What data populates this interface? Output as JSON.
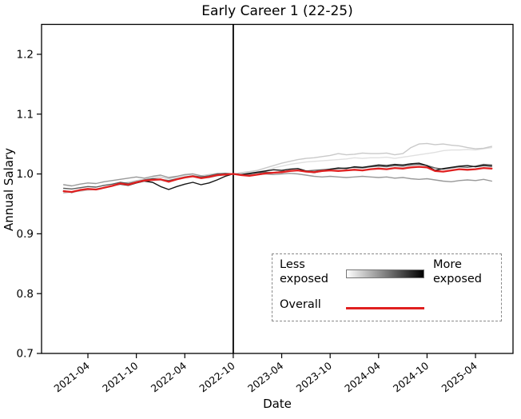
{
  "figure": {
    "title": "Early Career 1 (22-25)"
  },
  "axes": {
    "xlabel": "Date",
    "ylabel": "Annual Salary"
  },
  "legend": {
    "less_label": "Less exposed",
    "more_label": "More exposed",
    "overall_label": "Overall",
    "gradient_from": "#ffffff",
    "gradient_to": "#000000",
    "overall_color": "#e02020",
    "border_style": "dashed"
  },
  "chart_data": {
    "type": "line",
    "title": "Early Career 1 (22-25)",
    "xlabel": "Date",
    "ylabel": "Annual Salary",
    "ylim": [
      0.7,
      1.25
    ],
    "grid": false,
    "legend_position": "lower right",
    "y_ticks": [
      0.7,
      0.8,
      0.9,
      1.0,
      1.1,
      1.2
    ],
    "x_tick_labels": [
      "2021-04",
      "2021-10",
      "2022-04",
      "2022-10",
      "2023-04",
      "2023-10",
      "2024-04",
      "2024-10",
      "2025-04"
    ],
    "vline_x": "2022-10",
    "vline_color": "#000000",
    "normalization_note": "all series equal 1.0 at vertical line (2022-10)",
    "x": [
      "2021-01",
      "2021-02",
      "2021-03",
      "2021-04",
      "2021-05",
      "2021-06",
      "2021-07",
      "2021-08",
      "2021-09",
      "2021-10",
      "2021-11",
      "2021-12",
      "2022-01",
      "2022-02",
      "2022-03",
      "2022-04",
      "2022-05",
      "2022-06",
      "2022-07",
      "2022-08",
      "2022-09",
      "2022-10",
      "2022-11",
      "2022-12",
      "2023-01",
      "2023-02",
      "2023-03",
      "2023-04",
      "2023-05",
      "2023-06",
      "2023-07",
      "2023-08",
      "2023-09",
      "2023-10",
      "2023-11",
      "2023-12",
      "2024-01",
      "2024-02",
      "2024-03",
      "2024-04",
      "2024-05",
      "2024-06",
      "2024-07",
      "2024-08",
      "2024-09",
      "2024-10",
      "2024-11",
      "2024-12",
      "2025-01",
      "2025-02",
      "2025-03",
      "2025-04",
      "2025-05",
      "2025-06"
    ],
    "series": [
      {
        "name": "exposure-quintile-1-least-exposed",
        "color": "#e0e0e0",
        "width": 1.4,
        "values": [
          0.97,
          0.969,
          0.972,
          0.973,
          0.975,
          0.977,
          0.98,
          0.983,
          0.981,
          0.985,
          0.988,
          0.99,
          0.989,
          0.987,
          0.991,
          0.994,
          0.996,
          0.994,
          0.996,
          0.998,
          0.999,
          1.0,
          1.001,
          1.002,
          1.004,
          1.006,
          1.01,
          1.013,
          1.016,
          1.018,
          1.02,
          1.021,
          1.022,
          1.023,
          1.024,
          1.025,
          1.027,
          1.026,
          1.027,
          1.027,
          1.028,
          1.026,
          1.028,
          1.03,
          1.032,
          1.034,
          1.036,
          1.039,
          1.04,
          1.04,
          1.041,
          1.04,
          1.042,
          1.044
        ]
      },
      {
        "name": "exposure-quintile-2",
        "color": "#c9c9c9",
        "width": 1.4,
        "values": [
          0.968,
          0.97,
          0.971,
          0.973,
          0.974,
          0.977,
          0.98,
          0.984,
          0.986,
          0.989,
          0.991,
          0.993,
          0.995,
          0.992,
          0.995,
          0.998,
          1.0,
          0.997,
          0.999,
          1.001,
          1.0,
          1.0,
          1.002,
          1.004,
          1.006,
          1.01,
          1.014,
          1.018,
          1.021,
          1.024,
          1.026,
          1.027,
          1.029,
          1.031,
          1.034,
          1.032,
          1.033,
          1.035,
          1.034,
          1.034,
          1.035,
          1.032,
          1.034,
          1.044,
          1.05,
          1.051,
          1.049,
          1.05,
          1.048,
          1.047,
          1.044,
          1.042,
          1.043,
          1.046
        ]
      },
      {
        "name": "exposure-quintile-3",
        "color": "#999999",
        "width": 1.4,
        "values": [
          0.982,
          0.98,
          0.983,
          0.985,
          0.984,
          0.987,
          0.989,
          0.991,
          0.993,
          0.995,
          0.993,
          0.996,
          0.998,
          0.994,
          0.996,
          0.999,
          1.0,
          0.997,
          0.994,
          0.997,
          0.999,
          1.0,
          0.999,
          0.998,
          0.999,
          1.0,
          0.999,
          1.0,
          1.001,
          1.0,
          0.998,
          0.996,
          0.995,
          0.996,
          0.995,
          0.994,
          0.995,
          0.996,
          0.995,
          0.994,
          0.995,
          0.993,
          0.994,
          0.992,
          0.991,
          0.992,
          0.99,
          0.988,
          0.987,
          0.989,
          0.99,
          0.989,
          0.991,
          0.988
        ]
      },
      {
        "name": "exposure-quintile-4",
        "color": "#5c5c5c",
        "width": 1.4,
        "values": [
          0.976,
          0.975,
          0.977,
          0.979,
          0.978,
          0.981,
          0.983,
          0.986,
          0.984,
          0.987,
          0.99,
          0.992,
          0.991,
          0.989,
          0.992,
          0.995,
          0.997,
          0.995,
          0.997,
          1.0,
          1.001,
          1.0,
          0.999,
          1.0,
          1.002,
          1.003,
          1.002,
          1.004,
          1.005,
          1.006,
          1.005,
          1.006,
          1.007,
          1.008,
          1.009,
          1.01,
          1.011,
          1.01,
          1.012,
          1.013,
          1.012,
          1.014,
          1.013,
          1.015,
          1.016,
          1.014,
          1.01,
          1.008,
          1.01,
          1.012,
          1.011,
          1.013,
          1.016,
          1.015
        ]
      },
      {
        "name": "exposure-quintile-5-most-exposed",
        "color": "#151515",
        "width": 1.4,
        "values": [
          0.972,
          0.969,
          0.973,
          0.975,
          0.974,
          0.977,
          0.98,
          0.983,
          0.981,
          0.985,
          0.988,
          0.986,
          0.979,
          0.974,
          0.979,
          0.983,
          0.986,
          0.982,
          0.985,
          0.99,
          0.996,
          1.0,
          0.999,
          1.001,
          1.003,
          1.005,
          1.007,
          1.006,
          1.008,
          1.009,
          1.005,
          1.002,
          1.005,
          1.008,
          1.01,
          1.009,
          1.012,
          1.011,
          1.013,
          1.015,
          1.014,
          1.016,
          1.015,
          1.017,
          1.018,
          1.014,
          1.006,
          1.009,
          1.011,
          1.013,
          1.014,
          1.012,
          1.014,
          1.013
        ]
      },
      {
        "name": "overall",
        "color": "#e02020",
        "width": 2.3,
        "values": [
          0.971,
          0.97,
          0.973,
          0.975,
          0.974,
          0.977,
          0.98,
          0.984,
          0.982,
          0.986,
          0.989,
          0.99,
          0.991,
          0.987,
          0.991,
          0.994,
          0.996,
          0.993,
          0.995,
          0.998,
          0.999,
          1.0,
          0.998,
          0.997,
          0.999,
          1.001,
          1.002,
          1.003,
          1.005,
          1.006,
          1.004,
          1.003,
          1.005,
          1.006,
          1.005,
          1.006,
          1.007,
          1.006,
          1.008,
          1.009,
          1.008,
          1.01,
          1.009,
          1.011,
          1.012,
          1.011,
          1.005,
          1.004,
          1.006,
          1.008,
          1.007,
          1.008,
          1.01,
          1.009
        ]
      }
    ]
  }
}
